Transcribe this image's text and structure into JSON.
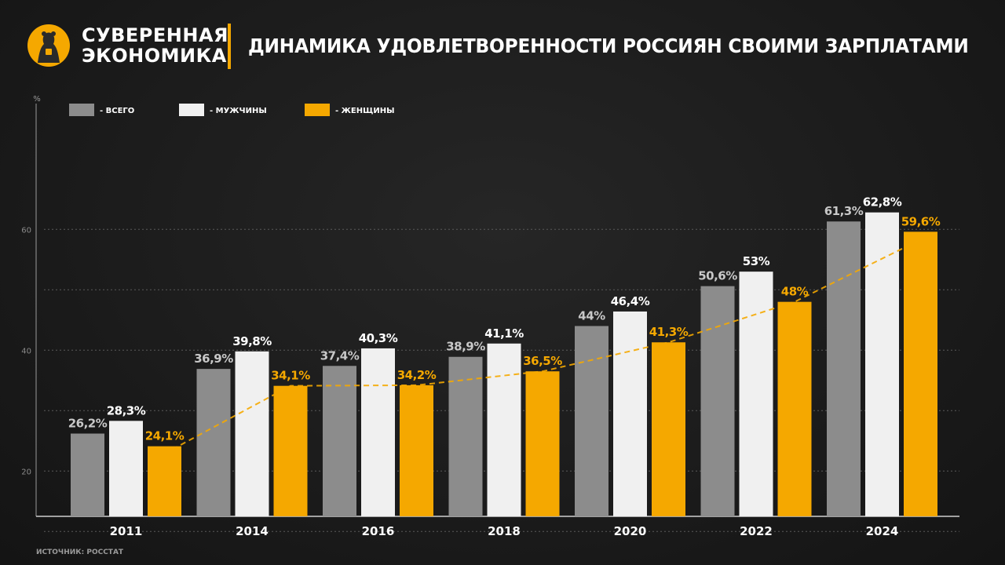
{
  "header": {
    "brand_line1": "СУВЕРЕННАЯ",
    "brand_line2": "ЭКОНОМИКА",
    "title": "ДИНАМИКА УДОВЛЕТВОРЕННОСТИ РОССИЯН СВОИМИ ЗАРПЛАТАМИ",
    "logo_icon": "bear-logo-icon",
    "accent_color": "#f5a800"
  },
  "source": "ИСТОЧНИК: РОССТАТ",
  "chart_data": {
    "type": "bar",
    "title": "ДИНАМИКА УДОВЛЕТВОРЕННОСТИ РОССИЯН СВОИМИ ЗАРПЛАТАМИ",
    "ylabel": "%",
    "xlabel": "",
    "ylim": [
      0,
      66
    ],
    "yticks": [
      20,
      40,
      60
    ],
    "grid": true,
    "legend_position": "top-left",
    "categories": [
      "2011",
      "2014",
      "2016",
      "2018",
      "2020",
      "2022",
      "2024"
    ],
    "series": [
      {
        "name": "ВСЕГО",
        "color": "#8c8c8c",
        "label_color": "#c8c8c8",
        "values": [
          26.2,
          36.9,
          37.4,
          38.9,
          44,
          50.6,
          61.3
        ],
        "labels": [
          "26,2%",
          "36,9%",
          "37,4%",
          "38,9%",
          "44%",
          "50,6%",
          "61,3%"
        ]
      },
      {
        "name": "МУЖЧИНЫ",
        "color": "#f0f0f0",
        "label_color": "#ffffff",
        "values": [
          28.3,
          39.8,
          40.3,
          41.1,
          46.4,
          53,
          62.8
        ],
        "labels": [
          "28,3%",
          "39,8%",
          "40,3%",
          "41,1%",
          "46,4%",
          "53%",
          "62,8%"
        ]
      },
      {
        "name": "ЖЕНЩИНЫ",
        "color": "#f5a800",
        "label_color": "#f5a800",
        "values": [
          24.1,
          34.1,
          34.2,
          36.5,
          41.3,
          48,
          59.6
        ],
        "labels": [
          "24,1%",
          "34,1%",
          "34,2%",
          "36,5%",
          "41,3%",
          "48%",
          "59,6%"
        ]
      }
    ],
    "trendline": {
      "series": "ЖЕНЩИНЫ",
      "style": "dashed",
      "color": "#f5a800"
    }
  }
}
